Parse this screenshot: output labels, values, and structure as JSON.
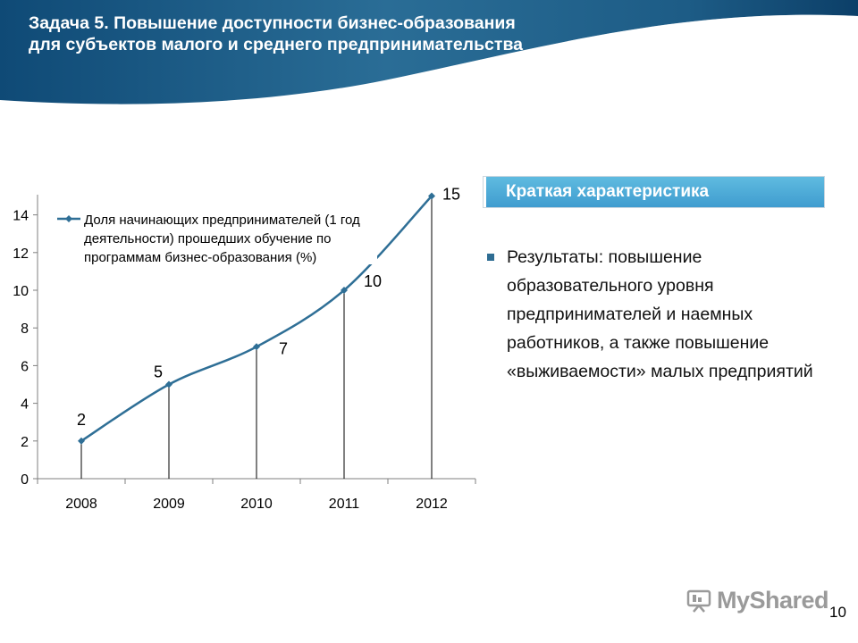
{
  "header": {
    "title_line1": "Задача 5. Повышение доступности бизнес-образования",
    "title_line2": "для субъектов малого и среднего предпринимательства"
  },
  "badge": {
    "label": "Краткая характеристика"
  },
  "bullet": {
    "text": "Результаты: повышение образовательного уровня предпринимателей и наемных работников, а также повышение «выживаемости» малых предприятий"
  },
  "logo": {
    "text": "MyShared"
  },
  "page_number": "10",
  "colors": {
    "header_dark": "#1b5a84",
    "series": "#2f6f96",
    "badge": "#4aa8d8"
  },
  "chart_data": {
    "type": "line",
    "categories": [
      "2008",
      "2009",
      "2010",
      "2011",
      "2012"
    ],
    "series": [
      {
        "name": "Доля начинающих предпринимателей (1 год деятельности) прошедших обучение по программам бизнес-образования (%)",
        "values": [
          2,
          5,
          7,
          10,
          15
        ]
      }
    ],
    "data_labels": [
      "2",
      "5",
      "7",
      "10",
      "15"
    ],
    "legend_lines": [
      "Доля начинающих предпринимателей (1 год",
      "деятельности) прошедших обучение по",
      "программам бизнес-образования (%)"
    ],
    "y_ticks": [
      "0",
      "2",
      "4",
      "6",
      "8",
      "10",
      "12",
      "14"
    ],
    "ylim": [
      0,
      15
    ],
    "title": "",
    "xlabel": "",
    "ylabel": "",
    "legend_position": "top-left",
    "grid": false
  }
}
